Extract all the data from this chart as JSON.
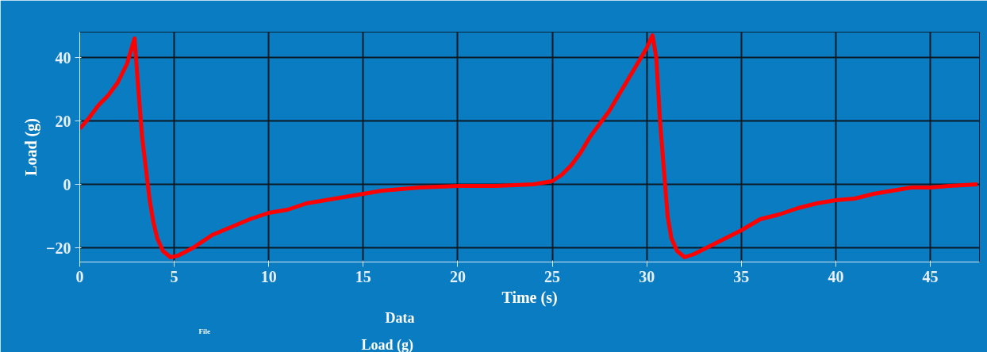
{
  "chart_data": {
    "type": "line",
    "xlabel": "Time (s)",
    "ylabel": "Load (g)",
    "annotations": [
      "File",
      "Data",
      "Load (g)"
    ],
    "xlim": [
      0,
      47.6
    ],
    "ylim": [
      -24.5,
      48
    ],
    "xticks": [
      0,
      5,
      10,
      15,
      20,
      25,
      30,
      35,
      40,
      45
    ],
    "yticks": [
      -20,
      0,
      20,
      40
    ],
    "grid": true,
    "series": [
      {
        "color": "#ff0000",
        "x": [
          0,
          0.5,
          1,
          1.5,
          2,
          2.5,
          2.9,
          3.1,
          3.3,
          3.5,
          3.7,
          3.9,
          4.1,
          4.4,
          4.8,
          5.2,
          6,
          7,
          8,
          9,
          10,
          11,
          12,
          13,
          14,
          15,
          16,
          17,
          18,
          20,
          22,
          24,
          25,
          25.5,
          26,
          26.5,
          27,
          27.5,
          28,
          28.5,
          29,
          29.5,
          30,
          30.3,
          30.5,
          30.7,
          30.9,
          31.1,
          31.3,
          31.6,
          32,
          32.5,
          33,
          34,
          35,
          36,
          37,
          38,
          39,
          40,
          41,
          42,
          43,
          44,
          45,
          46,
          47.5
        ],
        "values": [
          17.5,
          21,
          25,
          28,
          32,
          38,
          46,
          30,
          15,
          5,
          -5,
          -12,
          -17,
          -21,
          -23,
          -22.5,
          -20,
          -16,
          -13.5,
          -11,
          -9,
          -8,
          -6,
          -5,
          -4,
          -3,
          -2,
          -1.5,
          -1,
          -0.5,
          -0.5,
          0,
          1,
          3,
          6,
          10,
          15,
          19,
          23,
          28,
          33,
          38,
          43,
          47,
          40,
          20,
          5,
          -10,
          -17,
          -21,
          -23,
          -22,
          -20.5,
          -17.5,
          -14.5,
          -11,
          -9.5,
          -7.5,
          -6,
          -5,
          -4.5,
          -3,
          -2,
          -1,
          -1,
          -0.5,
          0
        ]
      }
    ]
  }
}
